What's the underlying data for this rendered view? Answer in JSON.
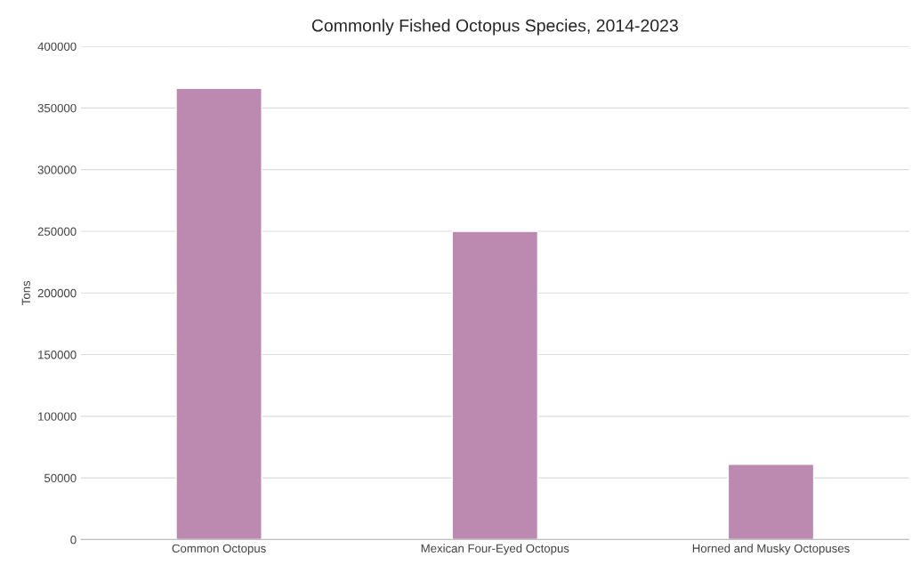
{
  "chart_data": {
    "type": "bar",
    "title": "Commonly Fished Octopus Species, 2014-2023",
    "ylabel": "Tons",
    "categories": [
      "Common Octopus",
      "Mexican Four-Eyed Octopus",
      "Horned and Musky Octopuses"
    ],
    "values": [
      366000,
      250000,
      61000
    ],
    "color": "#bc8ab0",
    "ylim": [
      0,
      400000
    ],
    "yticks": [
      0,
      50000,
      100000,
      150000,
      200000,
      250000,
      300000,
      350000,
      400000
    ],
    "grid": "y"
  }
}
